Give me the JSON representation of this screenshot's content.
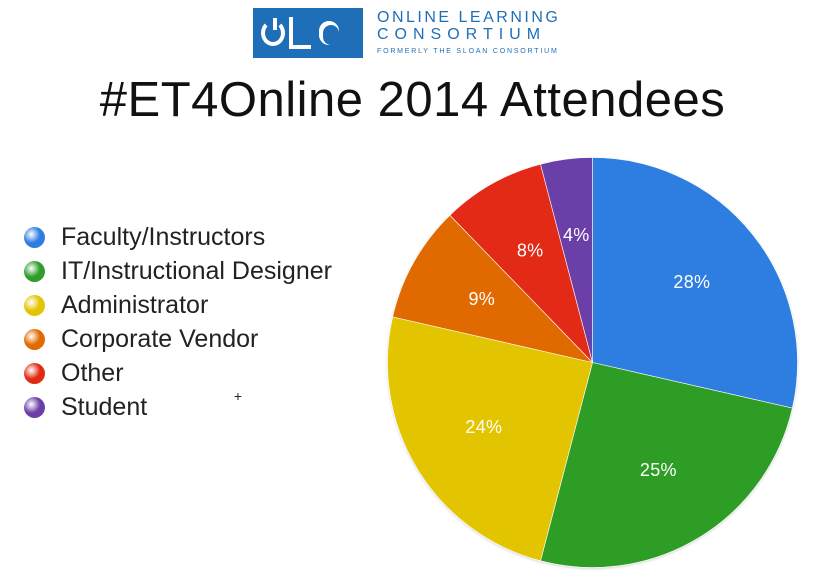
{
  "logo": {
    "line1": "ONLINE LEARNING",
    "line2": "CONSORTIUM",
    "line3": "FORMERLY THE SLOAN CONSORTIUM"
  },
  "chart_data": {
    "type": "pie",
    "title": "#ET4Online 2014 Attendees",
    "legend_position": "left",
    "categories": [
      "Faculty/Instructors",
      "IT/Instructional Designer",
      "Administrator",
      "Corporate Vendor",
      "Other",
      "Student"
    ],
    "values": [
      28,
      25,
      24,
      9,
      8,
      4
    ],
    "labels": [
      "28%",
      "25%",
      "24%",
      "9%",
      "8%",
      "4%"
    ],
    "colors": [
      "#2f7de0",
      "#2f9d28",
      "#e3c400",
      "#e16a00",
      "#e22a12",
      "#6b3fa8"
    ]
  }
}
